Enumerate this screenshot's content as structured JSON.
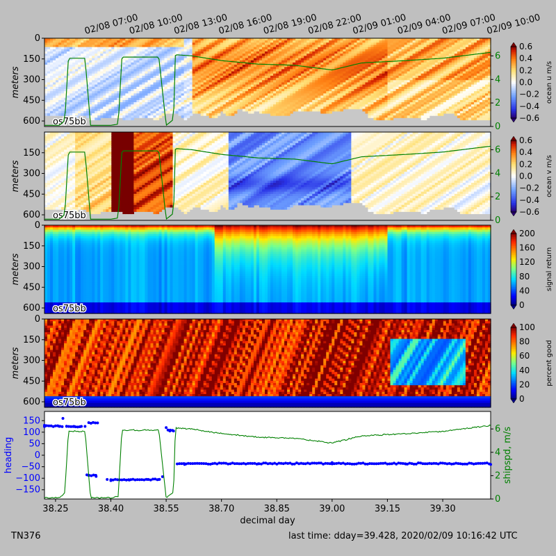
{
  "footer": {
    "left": "TN376",
    "right": "last time: dday=39.428,  2020/02/09 10:16:42 UTC"
  },
  "colors": {
    "background": "#bfbfbf",
    "ship_speed": "#008000",
    "heading": "#0000ff",
    "missing": "#c8c8c8"
  },
  "chart_data": [
    {
      "type": "heatmap",
      "label": "os75bb",
      "ylabel": "meters",
      "ylim": [
        640,
        0
      ],
      "yticks": [
        0,
        150,
        300,
        450,
        600
      ],
      "colorbar_label": "ocean u m/s",
      "colormap": "red-white-blue",
      "clim": [
        -0.6,
        0.6
      ],
      "colorbar_ticks": [
        "0.6",
        "0.4",
        "0.2",
        "0.0",
        "−0.2",
        "−0.4",
        "−0.6"
      ],
      "right_yticks": [
        "0",
        "2",
        "4",
        "6"
      ],
      "top_xticks": [
        "02/08 07:00",
        "02/08 10:00",
        "02/08 13:00",
        "02/08 16:00",
        "02/08 19:00",
        "02/08 22:00",
        "02/09 01:00",
        "02/09 04:00",
        "02/09 07:00",
        "02/09 10:00"
      ]
    },
    {
      "type": "heatmap",
      "label": "os75bb",
      "ylabel": "meters",
      "ylim": [
        640,
        0
      ],
      "yticks": [
        150,
        300,
        450,
        600
      ],
      "colorbar_label": "ocean v m/s",
      "colormap": "red-white-blue",
      "clim": [
        -0.6,
        0.6
      ],
      "colorbar_ticks": [
        "0.6",
        "0.4",
        "0.2",
        "0.0",
        "−0.2",
        "−0.4",
        "−0.6"
      ],
      "right_yticks": [
        "0",
        "2",
        "4",
        "6"
      ]
    },
    {
      "type": "heatmap",
      "label": "os75bb",
      "ylabel": "meters",
      "ylim": [
        640,
        0
      ],
      "yticks": [
        0,
        150,
        300,
        450,
        600
      ],
      "colorbar_label": "signal return",
      "colormap": "jet",
      "clim": [
        0,
        200
      ],
      "colorbar_ticks": [
        "200",
        "160",
        "120",
        "80",
        "40",
        "0"
      ]
    },
    {
      "type": "heatmap",
      "label": "os75bb",
      "ylabel": "meters",
      "ylim": [
        640,
        0
      ],
      "yticks": [
        0,
        150,
        300,
        450,
        600
      ],
      "colorbar_label": "percent good",
      "colormap": "jet",
      "clim": [
        0,
        100
      ],
      "colorbar_ticks": [
        "100",
        "80",
        "60",
        "40",
        "20",
        "0"
      ]
    },
    {
      "type": "scatter",
      "xlabel": "decimal day",
      "ylabel": "heading",
      "ylabel_right": "shipspd, m/s",
      "xlim": [
        38.22,
        39.43
      ],
      "ylim": [
        -190,
        190
      ],
      "ylim_right": [
        0,
        7.5
      ],
      "xticks": [
        "38.25",
        "38.40",
        "38.55",
        "38.70",
        "38.85",
        "39.00",
        "39.15",
        "39.30"
      ],
      "yticks": [
        "150",
        "100",
        "50",
        "0",
        "−50",
        "−100",
        "−150"
      ],
      "right_yticks": [
        "0",
        "2",
        "4",
        "6"
      ],
      "series": [
        {
          "name": "heading",
          "x": [
            38.22,
            38.26,
            38.27,
            38.28,
            38.3,
            38.32,
            38.33,
            38.34,
            38.36,
            38.39,
            38.4,
            38.45,
            38.5,
            38.53,
            38.54,
            38.55,
            38.56,
            38.57,
            38.6,
            38.8,
            39.0,
            39.2,
            39.43
          ],
          "y": [
            130,
            125,
            160,
            125,
            125,
            125,
            125,
            -88,
            -92,
            -105,
            -110,
            -108,
            -105,
            -105,
            -93,
            120,
            105,
            105,
            -40,
            -37,
            -32,
            -38,
            -40
          ]
        },
        {
          "name": "shipspd",
          "x": [
            38.22,
            38.26,
            38.275,
            38.285,
            38.32,
            38.33,
            38.345,
            38.4,
            38.42,
            38.43,
            38.52,
            38.53,
            38.55,
            38.57,
            38.575,
            38.62,
            38.7,
            38.8,
            38.9,
            39.0,
            39.08,
            39.2,
            39.3,
            39.43
          ],
          "y": [
            0.1,
            0.1,
            0.5,
            5.8,
            5.8,
            5.8,
            0.1,
            0.1,
            0.2,
            5.9,
            5.9,
            5.9,
            0.1,
            0.6,
            6.1,
            6.0,
            5.6,
            5.3,
            5.2,
            4.8,
            5.4,
            5.6,
            5.8,
            6.3
          ]
        }
      ]
    }
  ]
}
